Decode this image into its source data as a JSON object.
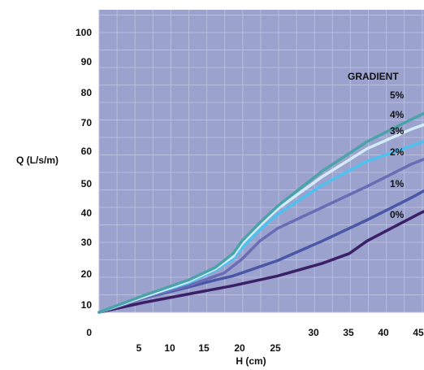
{
  "chart_data": {
    "type": "line",
    "xlabel": "H (cm)",
    "ylabel": "Q (L/s/m)",
    "legend_title": "GRADIENT",
    "legend_placement": "right, at line ends",
    "xlim": [
      0,
      40
    ],
    "ylim": [
      0,
      110
    ],
    "grid": true,
    "x_ticks": [
      5,
      10,
      15,
      20,
      25,
      30,
      35,
      40,
      45
    ],
    "y_ticks": [
      0,
      10,
      20,
      30,
      40,
      50,
      60,
      70,
      80,
      90,
      100
    ],
    "plot_background": "#9ba2cd",
    "grid_color": "#b9bedd",
    "series": [
      {
        "name": "0%",
        "color": "#3b2068",
        "x": [
          0,
          5,
          10,
          15,
          20,
          25,
          28,
          30,
          33,
          36,
          39
        ],
        "y": [
          0,
          3.5,
          6.5,
          9.5,
          13,
          17.5,
          21,
          25.5,
          30.5,
          35.5,
          40
        ]
      },
      {
        "name": "1%",
        "color": "#4a57a6",
        "x": [
          0,
          5,
          10,
          13,
          15,
          20,
          25,
          30,
          35,
          39
        ],
        "y": [
          0,
          5,
          9,
          11.5,
          13,
          18.5,
          25.5,
          33,
          41,
          48
        ]
      },
      {
        "name": "2%",
        "color": "#6a6db5",
        "x": [
          0,
          5,
          10,
          14,
          16,
          18,
          20,
          25,
          30,
          35,
          39
        ],
        "y": [
          0,
          5,
          9.5,
          14,
          19,
          25.5,
          30,
          37.5,
          45,
          53,
          58
        ]
      },
      {
        "name": "3%",
        "color": "#4fc1ee",
        "x": [
          0,
          5,
          10,
          13,
          15,
          16,
          18,
          20,
          25,
          30,
          35,
          39
        ],
        "y": [
          0,
          5.5,
          10.5,
          15,
          19,
          23,
          29.5,
          35,
          45.5,
          54,
          59.5,
          64
        ]
      },
      {
        "name": "4%",
        "color": "#d5ecf8",
        "x": [
          0,
          5,
          10,
          13,
          15,
          16,
          18,
          20,
          25,
          30,
          35,
          39
        ],
        "y": [
          0,
          5.5,
          11,
          15.5,
          20,
          24.5,
          31,
          37,
          48.5,
          58.5,
          65.5,
          70
        ]
      },
      {
        "name": "5%",
        "color": "#4aa3a8",
        "x": [
          0,
          5,
          10,
          13,
          15,
          16,
          18,
          20,
          25,
          30,
          35,
          39
        ],
        "y": [
          0,
          6,
          11.5,
          16,
          21,
          25.5,
          32,
          38,
          50.5,
          61,
          69,
          75
        ]
      }
    ]
  }
}
